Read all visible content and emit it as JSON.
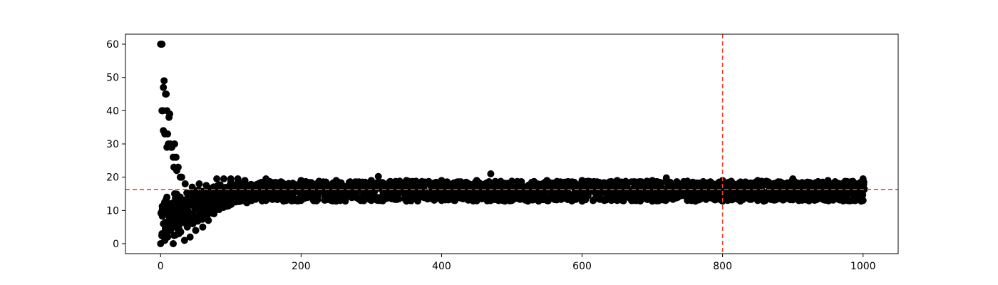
{
  "chart_data": {
    "type": "scatter",
    "title": "",
    "xlabel": "",
    "ylabel": "",
    "xlim": [
      -50,
      1050
    ],
    "ylim": [
      -3,
      63
    ],
    "x_ticks": [
      0,
      200,
      400,
      600,
      800,
      1000
    ],
    "y_ticks": [
      0,
      10,
      20,
      30,
      40,
      50,
      60
    ],
    "grid": false,
    "legend": "none",
    "marker_color": "#000000",
    "reference_lines": [
      {
        "orientation": "horizontal",
        "value": 16.3,
        "color": "#e8432c",
        "style": "dashed"
      },
      {
        "orientation": "vertical",
        "value": 800,
        "color": "#e8432c",
        "style": "dashed"
      }
    ],
    "series": [
      {
        "points": [
          [
            0,
            60
          ],
          [
            1,
            60
          ],
          [
            2,
            60
          ],
          [
            2,
            40
          ],
          [
            3,
            40
          ],
          [
            4,
            47
          ],
          [
            4,
            34
          ],
          [
            5,
            49
          ],
          [
            6,
            33
          ],
          [
            7,
            45
          ],
          [
            8,
            45
          ],
          [
            9,
            40
          ],
          [
            9,
            29
          ],
          [
            10,
            33
          ],
          [
            11,
            30
          ],
          [
            12,
            38
          ],
          [
            13,
            39
          ],
          [
            14,
            30
          ],
          [
            15,
            29
          ],
          [
            16,
            29
          ],
          [
            18,
            26
          ],
          [
            19,
            23
          ],
          [
            20,
            30
          ],
          [
            22,
            26
          ],
          [
            23,
            22
          ],
          [
            25,
            23
          ],
          [
            28,
            20
          ],
          [
            30,
            20
          ],
          [
            35,
            18
          ],
          [
            45,
            17
          ],
          [
            55,
            18
          ],
          [
            65,
            17.5
          ],
          [
            0,
            0
          ],
          [
            2,
            3
          ],
          [
            4,
            6
          ],
          [
            6,
            1
          ],
          [
            8,
            9
          ],
          [
            10,
            2
          ],
          [
            12,
            12
          ],
          [
            14,
            4
          ],
          [
            16,
            8
          ],
          [
            18,
            0
          ],
          [
            20,
            15
          ],
          [
            22,
            6
          ],
          [
            24,
            11
          ],
          [
            26,
            3
          ],
          [
            28,
            14
          ],
          [
            30,
            7
          ],
          [
            32,
            10
          ],
          [
            34,
            1
          ],
          [
            36,
            13
          ],
          [
            38,
            5
          ],
          [
            40,
            9
          ],
          [
            42,
            2
          ],
          [
            44,
            12
          ],
          [
            46,
            6
          ],
          [
            48,
            14
          ],
          [
            50,
            4
          ],
          [
            52,
            11
          ],
          [
            55,
            8
          ],
          [
            58,
            13
          ],
          [
            60,
            5
          ],
          [
            62,
            12
          ],
          [
            64,
            9
          ],
          [
            66,
            14
          ],
          [
            68,
            7
          ],
          [
            70,
            11
          ],
          [
            72,
            10
          ],
          [
            74,
            13
          ],
          [
            76,
            9
          ],
          [
            78,
            12
          ],
          [
            80,
            11
          ],
          [
            85,
            13
          ],
          [
            90,
            12
          ],
          [
            95,
            13
          ],
          [
            80,
            19.5
          ],
          [
            90,
            19.5
          ],
          [
            100,
            19.5
          ],
          [
            110,
            19.5
          ],
          [
            120,
            19
          ],
          [
            150,
            19.5
          ],
          [
            310,
            20.2
          ],
          [
            470,
            21
          ],
          [
            720,
            19.8
          ],
          [
            900,
            19.5
          ],
          [
            1000,
            19.5
          ],
          [
            50,
            16
          ],
          [
            60,
            15
          ],
          [
            70,
            16.5
          ],
          [
            80,
            15.5
          ],
          [
            100,
            16
          ],
          [
            120,
            16
          ],
          [
            150,
            16.5
          ],
          [
            200,
            16.5
          ],
          [
            250,
            16.5
          ],
          [
            300,
            16.5
          ],
          [
            350,
            16.5
          ],
          [
            400,
            16.5
          ],
          [
            450,
            16.5
          ],
          [
            500,
            16.5
          ],
          [
            550,
            16.5
          ],
          [
            600,
            16.5
          ],
          [
            650,
            16.5
          ],
          [
            700,
            16.5
          ],
          [
            750,
            16.5
          ],
          [
            800,
            16.5
          ],
          [
            850,
            16.5
          ],
          [
            900,
            16.5
          ],
          [
            950,
            16.5
          ],
          [
            1000,
            16.5
          ],
          [
            120,
            12.8
          ],
          [
            150,
            13
          ],
          [
            200,
            13
          ],
          [
            250,
            12.8
          ],
          [
            300,
            13
          ],
          [
            350,
            12.8
          ],
          [
            400,
            13
          ],
          [
            450,
            13
          ],
          [
            500,
            13
          ],
          [
            550,
            13
          ],
          [
            600,
            12.8
          ],
          [
            650,
            13
          ],
          [
            700,
            12.8
          ],
          [
            750,
            13
          ],
          [
            800,
            12.8
          ],
          [
            850,
            13
          ],
          [
            900,
            13.2
          ],
          [
            950,
            13
          ],
          [
            1000,
            13
          ],
          [
            100,
            18.5
          ],
          [
            150,
            18.8
          ],
          [
            200,
            19
          ],
          [
            250,
            19
          ],
          [
            300,
            19
          ],
          [
            350,
            19
          ],
          [
            400,
            19
          ],
          [
            450,
            19
          ],
          [
            500,
            18.8
          ],
          [
            550,
            19
          ],
          [
            600,
            19
          ],
          [
            650,
            19
          ],
          [
            700,
            19
          ],
          [
            750,
            18.8
          ],
          [
            800,
            19
          ],
          [
            850,
            19
          ],
          [
            900,
            19.2
          ],
          [
            950,
            19
          ],
          [
            1000,
            18.8
          ]
        ]
      }
    ]
  }
}
